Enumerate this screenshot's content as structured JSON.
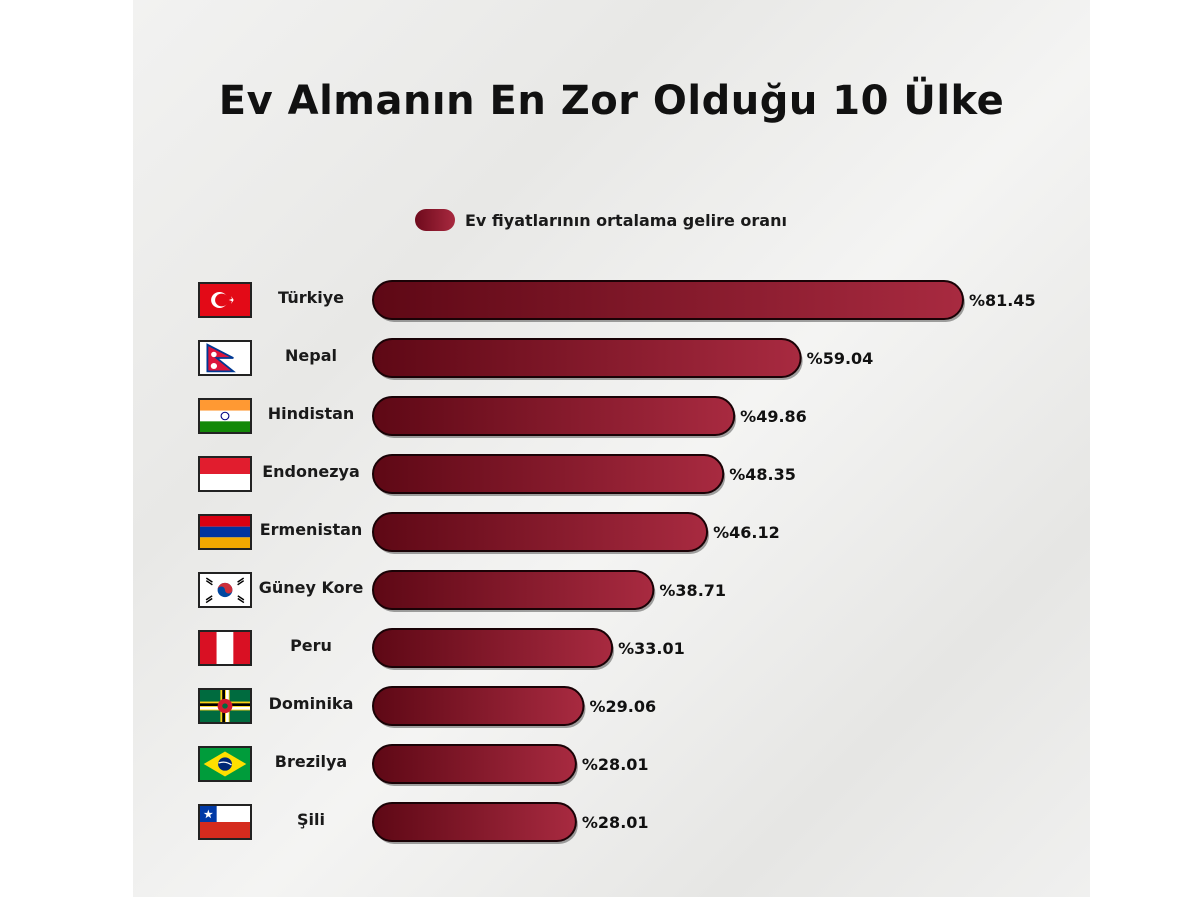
{
  "chart_data": {
    "type": "bar",
    "orientation": "horizontal",
    "title": "Ev Almanın En Zor Olduğu 10 Ülke",
    "legend": {
      "label": "Ev fiyatlarının ortalama gelire oranı",
      "placement": "top-center"
    },
    "categories": [
      "Türkiye",
      "Nepal",
      "Hindistan",
      "Endonezya",
      "Ermenistan",
      "Güney Kore",
      "Peru",
      "Dominika",
      "Brezilya",
      "Şili"
    ],
    "values": [
      81.45,
      59.04,
      49.86,
      48.35,
      46.12,
      38.71,
      33.01,
      29.06,
      28.01,
      28.01
    ],
    "value_labels": [
      "%81.45",
      "%59.04",
      "%49.86",
      "%48.35",
      "%46.12",
      "%38.71",
      "%33.01",
      "%29.06",
      "%28.01",
      "%28.01"
    ],
    "flags": [
      "turkey-flag-icon",
      "nepal-flag-icon",
      "india-flag-icon",
      "indonesia-flag-icon",
      "armenia-flag-icon",
      "south-korea-flag-icon",
      "peru-flag-icon",
      "dominica-flag-icon",
      "brazil-flag-icon",
      "chile-flag-icon"
    ],
    "xlim": [
      0,
      81.45
    ],
    "grid": false,
    "bar_color": "#8a1a30"
  }
}
